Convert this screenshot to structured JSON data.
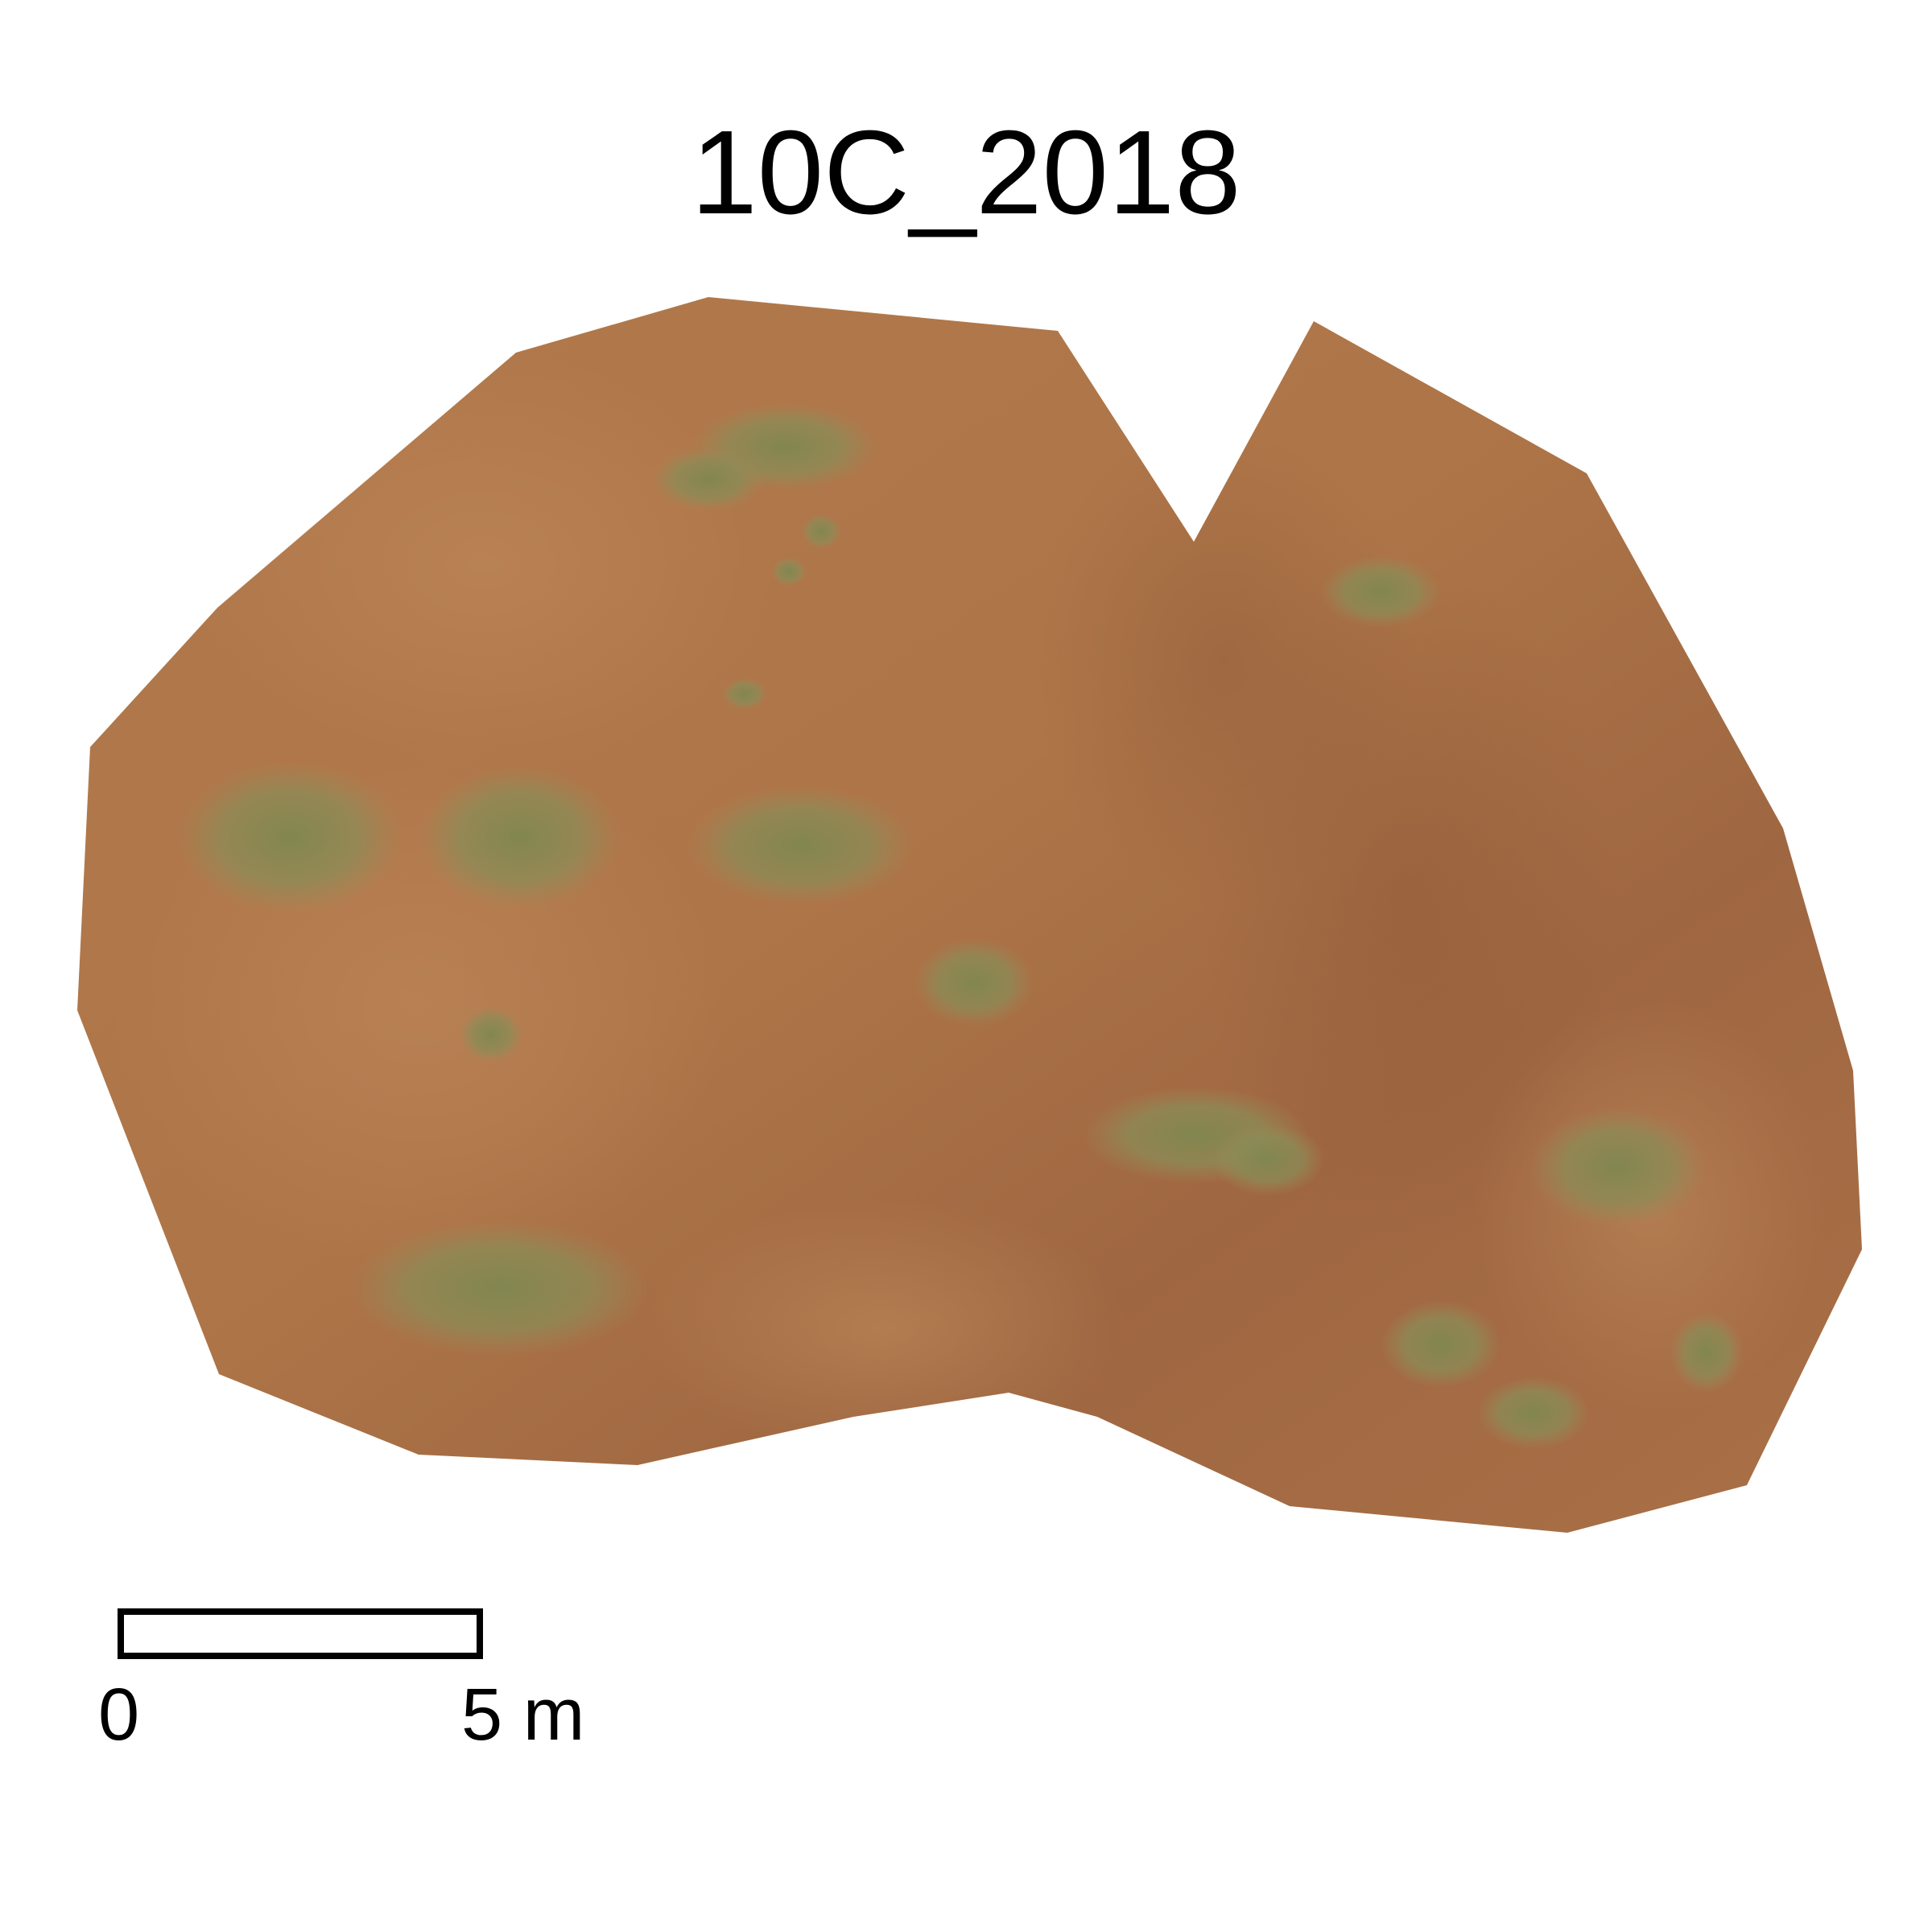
{
  "map": {
    "title": "10C_2018",
    "colors": {
      "background": "#ffffff",
      "sand": "#b07648",
      "sand_dark": "#9c6440",
      "sand_light": "#b98356",
      "vegetation": "#8a8a55",
      "vegetation_dark": "#6f7444",
      "scale_bar_outline": "#000000"
    },
    "scale_bar": {
      "start_label": "0",
      "end_label": "5 m",
      "length_meters": 5
    }
  }
}
